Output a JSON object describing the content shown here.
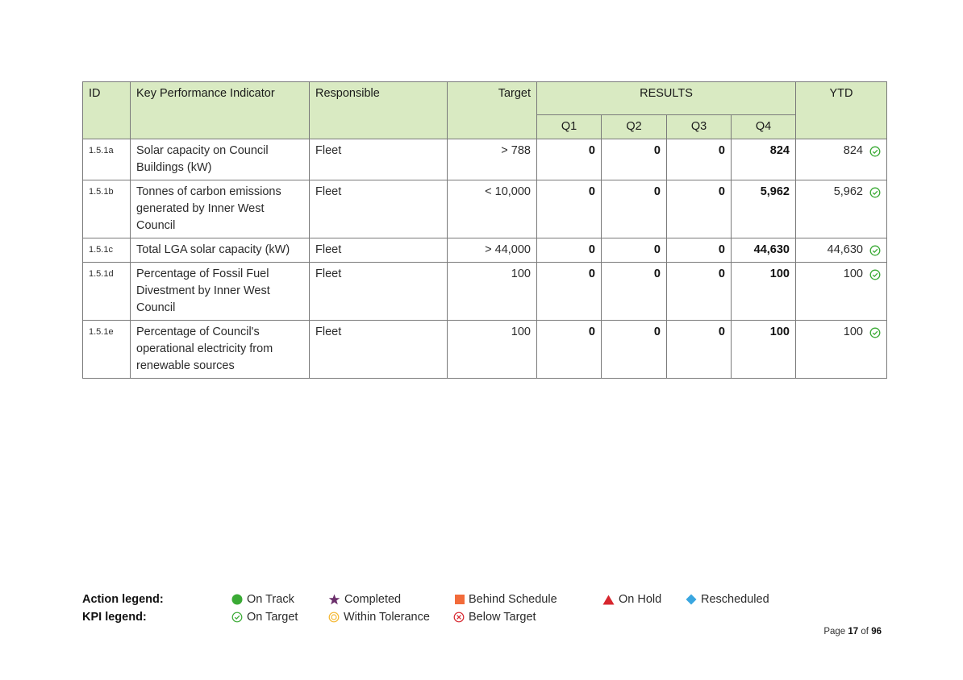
{
  "table": {
    "headers": {
      "id": "ID",
      "kpi": "Key Performance Indicator",
      "responsible": "Responsible",
      "target": "Target",
      "results": "RESULTS",
      "ytd": "YTD",
      "q1": "Q1",
      "q2": "Q2",
      "q3": "Q3",
      "q4": "Q4"
    },
    "rows": [
      {
        "id": "1.5.1a",
        "kpi": "Solar capacity on Council Buildings (kW)",
        "responsible": "Fleet",
        "target": "> 788",
        "q1": "0",
        "q2": "0",
        "q3": "0",
        "q4": "824",
        "ytd": "824",
        "status_icon": "on-target-icon"
      },
      {
        "id": "1.5.1b",
        "kpi": "Tonnes of carbon emissions generated by Inner West Council",
        "responsible": "Fleet",
        "target": "< 10,000",
        "q1": "0",
        "q2": "0",
        "q3": "0",
        "q4": "5,962",
        "ytd": "5,962",
        "status_icon": "on-target-icon"
      },
      {
        "id": "1.5.1c",
        "kpi": "Total LGA solar capacity (kW)",
        "responsible": "Fleet",
        "target": "> 44,000",
        "q1": "0",
        "q2": "0",
        "q3": "0",
        "q4": "44,630",
        "ytd": "44,630",
        "status_icon": "on-target-icon"
      },
      {
        "id": "1.5.1d",
        "kpi": "Percentage of Fossil Fuel Divestment by Inner West Council",
        "responsible": "Fleet",
        "target": "100",
        "q1": "0",
        "q2": "0",
        "q3": "0",
        "q4": "100",
        "ytd": "100",
        "status_icon": "on-target-icon"
      },
      {
        "id": "1.5.1e",
        "kpi": "Percentage of Council's operational electricity from renewable sources",
        "responsible": "Fleet",
        "target": "100",
        "q1": "0",
        "q2": "0",
        "q3": "0",
        "q4": "100",
        "ytd": "100",
        "status_icon": "on-target-icon"
      }
    ]
  },
  "legend": {
    "action_label": "Action legend:",
    "kpi_label": "KPI legend:",
    "action_items": [
      {
        "label": "On Track",
        "icon": "green-circle-icon",
        "color": "#3aaa35"
      },
      {
        "label": "Completed",
        "icon": "purple-star-icon",
        "color": "#6b2f6b"
      },
      {
        "label": "Behind Schedule",
        "icon": "orange-square-icon",
        "color": "#f26b3a"
      },
      {
        "label": "On Hold",
        "icon": "red-triangle-icon",
        "color": "#d7262e"
      },
      {
        "label": "Rescheduled",
        "icon": "blue-diamond-icon",
        "color": "#3aa6e0"
      }
    ],
    "kpi_items": [
      {
        "label": "On Target",
        "icon": "green-check-circle-icon",
        "color": "#3aaa35"
      },
      {
        "label": "Within Tolerance",
        "icon": "yellow-ring-icon",
        "color": "#f4b731"
      },
      {
        "label": "Below Target",
        "icon": "red-x-circle-icon",
        "color": "#d7262e"
      }
    ]
  },
  "footer": {
    "page_prefix": "Page",
    "page_current": "17",
    "page_of": "of",
    "page_total": "96"
  }
}
